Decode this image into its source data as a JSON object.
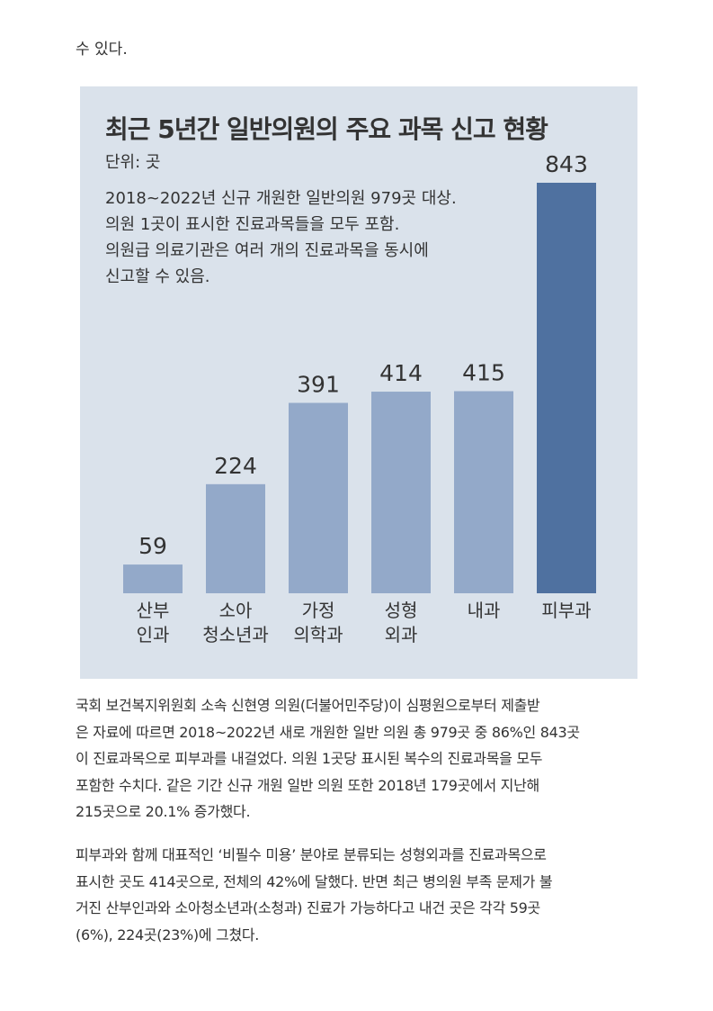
{
  "top_text": "수 있다.",
  "chart_data": {
    "type": "bar",
    "title": "최근 5년간 일반의원의 주요 과목 신고 현황",
    "unit": "단위: 곳",
    "note": [
      "2018~2022년 신규 개원한 일반의원 979곳 대상.",
      "의원 1곳이 표시한 진료과목들을 모두 포함.",
      "의원급 의료기관은 여러 개의 진료과목을 동시에",
      "신고할 수 있음."
    ],
    "categories": [
      [
        "산부",
        "인과"
      ],
      [
        "소아",
        "청소년과"
      ],
      [
        "가정",
        "의학과"
      ],
      [
        "성형",
        "외과"
      ],
      [
        "내과"
      ],
      [
        "피부과"
      ]
    ],
    "values": [
      59,
      224,
      391,
      414,
      415,
      843
    ],
    "highlight_index": 5,
    "colors": {
      "bar": "#93a9c9",
      "highlight": "#4f71a0",
      "background": "#dae2eb"
    },
    "ylim": [
      0,
      843
    ]
  },
  "paragraphs": [
    [
      "국회 보건복지위원회 소속 신현영 의원(더불어민주당)이 심평원으로부터 제출받",
      "은 자료에 따르면 2018~2022년 새로 개원한 일반 의원 총 979곳 중 86%인 843곳",
      "이 진료과목으로 피부과를 내걸었다. 의원 1곳당 표시된 복수의 진료과목을 모두",
      "포함한 수치다. 같은 기간 신규 개원 일반 의원 또한 2018년 179곳에서 지난해",
      "215곳으로 20.1% 증가했다."
    ],
    [
      "피부과와 함께 대표적인 ‘비필수 미용’ 분야로 분류되는 성형외과를 진료과목으로",
      "표시한 곳도 414곳으로, 전체의 42%에 달했다. 반면 최근 병의원 부족 문제가 불",
      "거진 산부인과와 소아청소년과(소청과) 진료가 가능하다고 내건 곳은 각각 59곳",
      "(6%), 224곳(23%)에 그쳤다."
    ]
  ]
}
